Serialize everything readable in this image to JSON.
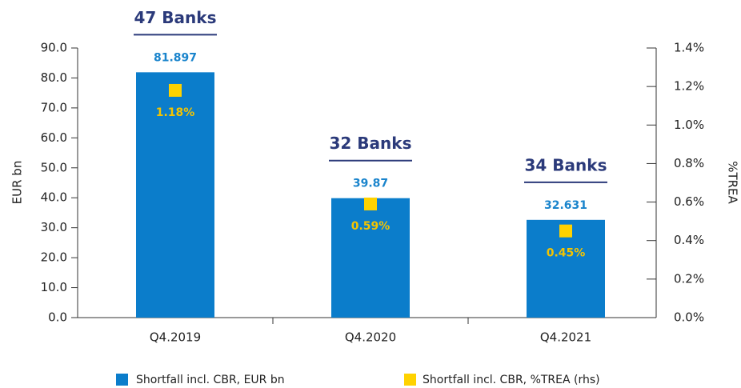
{
  "chart_data": {
    "type": "bar",
    "categories": [
      "Q4.2019",
      "Q4.2020",
      "Q4.2021"
    ],
    "annotations": [
      "47 Banks",
      "32 Banks",
      "34 Banks"
    ],
    "y_label": "EUR bn",
    "y2_label": "%TREA",
    "ylim": [
      0,
      90
    ],
    "yticks": [
      {
        "value": 0,
        "label": "0.0"
      },
      {
        "value": 10,
        "label": "10.0"
      },
      {
        "value": 20,
        "label": "20.0"
      },
      {
        "value": 30,
        "label": "30.0"
      },
      {
        "value": 40,
        "label": "40.0"
      },
      {
        "value": 50,
        "label": "50.0"
      },
      {
        "value": 60,
        "label": "60.0"
      },
      {
        "value": 70,
        "label": "70.0"
      },
      {
        "value": 80,
        "label": "80.0"
      },
      {
        "value": 90,
        "label": "90.0"
      }
    ],
    "y2lim": [
      0,
      1.4
    ],
    "y2ticks": [
      {
        "value": 0,
        "label": "0.0%"
      },
      {
        "value": 0.2,
        "label": "0.2%"
      },
      {
        "value": 0.4,
        "label": "0.4%"
      },
      {
        "value": 0.6,
        "label": "0.6%"
      },
      {
        "value": 0.8,
        "label": "0.8%"
      },
      {
        "value": 1.0,
        "label": "1.0%"
      },
      {
        "value": 1.2,
        "label": "1.2%"
      },
      {
        "value": 1.4,
        "label": "1.4%"
      }
    ],
    "series": [
      {
        "name": "Shortfall incl. CBR, EUR bn",
        "color": "#0b7dcb",
        "type": "bar",
        "values": [
          81.897,
          39.87,
          32.631
        ]
      },
      {
        "name": "Shortfall incl. CBR, %TREA (rhs)",
        "color": "#ffd200",
        "type": "scatter",
        "axis": "y2",
        "values": [
          1.18,
          0.59,
          0.45
        ],
        "value_labels": [
          "1.18%",
          "0.59%",
          "0.45%"
        ]
      }
    ]
  }
}
